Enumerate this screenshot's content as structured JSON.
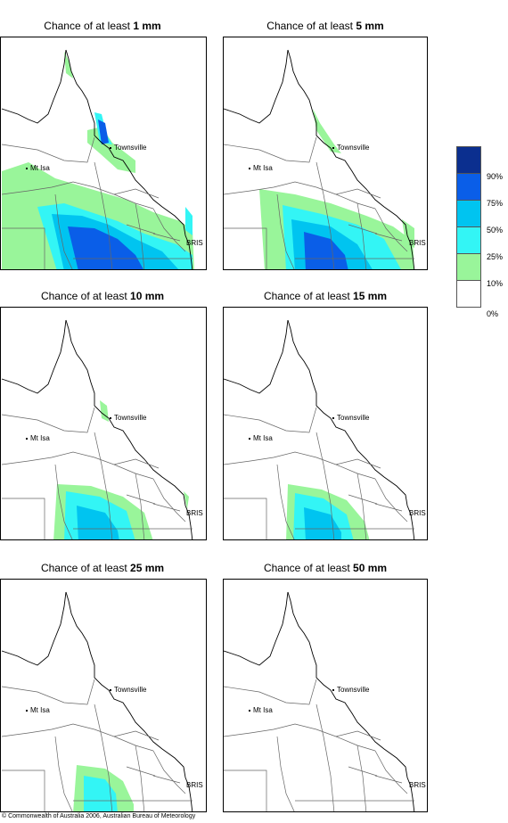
{
  "panels": [
    {
      "title_prefix": "Chance of at least ",
      "title_amount": "1 mm"
    },
    {
      "title_prefix": "Chance of at least ",
      "title_amount": "5 mm"
    },
    {
      "title_prefix": "Chance of at least ",
      "title_amount": "10 mm"
    },
    {
      "title_prefix": "Chance of at least ",
      "title_amount": "15 mm"
    },
    {
      "title_prefix": "Chance of at least ",
      "title_amount": "25 mm"
    },
    {
      "title_prefix": "Chance of at least ",
      "title_amount": "50 mm"
    }
  ],
  "places": {
    "townsville": "Townsville",
    "mt_isa": "Mt Isa",
    "brisbane": "BRIS"
  },
  "legend": {
    "labels": [
      "90%",
      "75%",
      "50%",
      "25%",
      "10%",
      "0%"
    ],
    "colors": [
      "#0b2f8f",
      "#0a5ee8",
      "#00c4f0",
      "#33f5f5",
      "#99f59a",
      "#ffffff"
    ]
  },
  "copyright": "© Commonwealth of Australia 2006, Australian Bureau of Meteorology"
}
